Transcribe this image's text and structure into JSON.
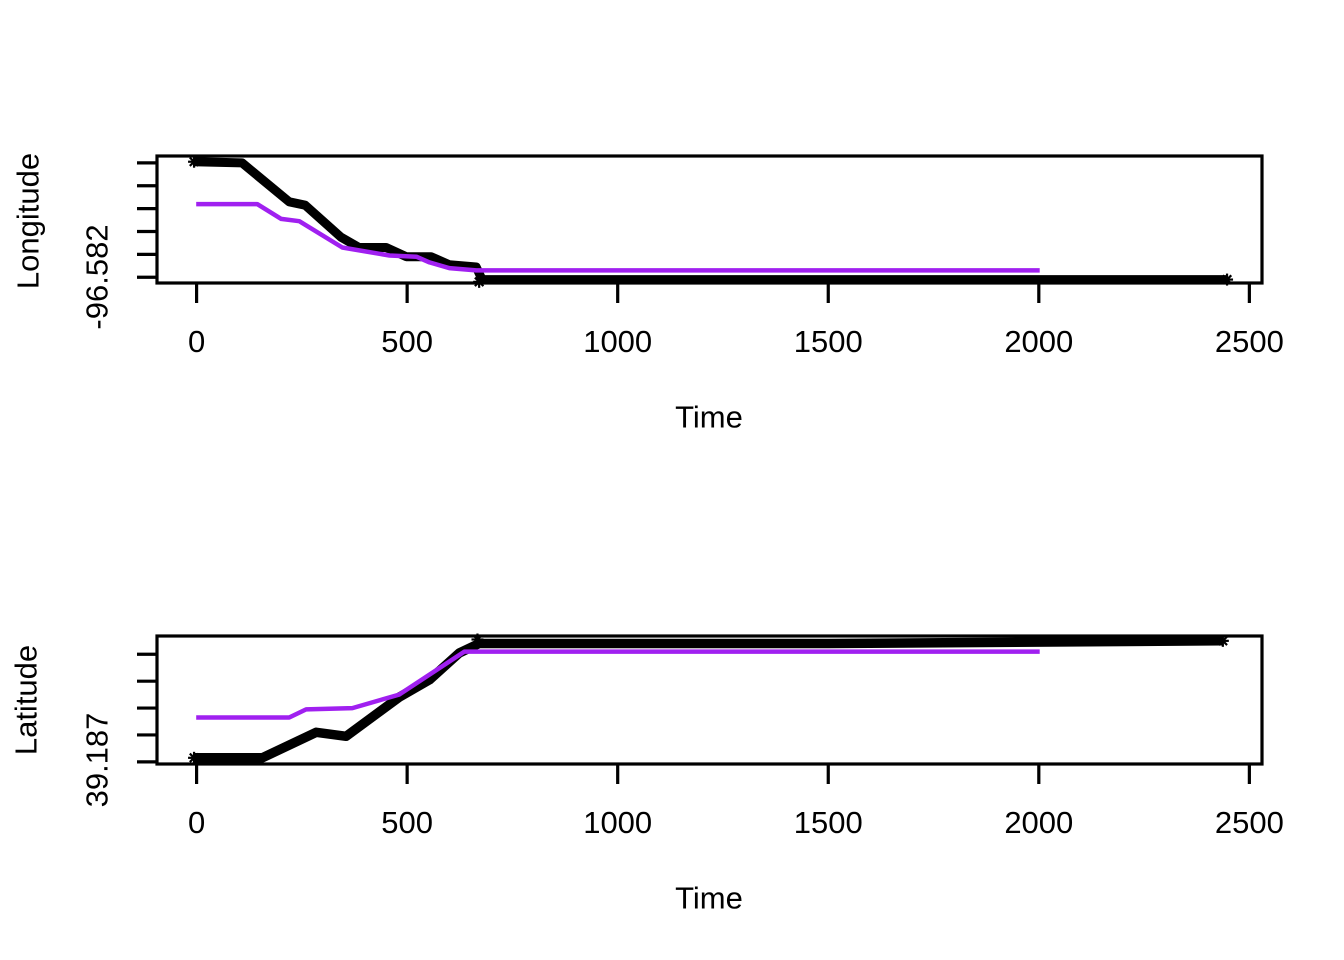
{
  "background_color": "#ffffff",
  "text_color": "#000000",
  "chart_data": [
    {
      "type": "line",
      "panel": "top",
      "title": "",
      "xlabel": "Time",
      "ylabel": "Longitude",
      "y_tick_label": "-96.582",
      "xlim": [
        -94,
        2530
      ],
      "ylim": [
        -96.5825,
        -96.5714
      ],
      "grid": false,
      "legend_position": "none",
      "x_ticks": [
        0,
        500,
        1000,
        1500,
        2000,
        2500
      ],
      "x_tick_labels": [
        "0",
        "500",
        "1000",
        "1500",
        "2000",
        "2500"
      ],
      "y_ticks": [
        -96.582,
        -96.58,
        -96.578,
        -96.576,
        -96.574,
        -96.572
      ],
      "y_tick_labels": [
        "-96.582",
        "",
        "",
        "",
        "",
        ""
      ],
      "series": [
        {
          "name": "black-track",
          "color": "#000000",
          "width": 9,
          "points": [
            [
              -6,
              -96.5719
            ],
            [
              108,
              -96.572
            ],
            [
              220,
              -96.5754
            ],
            [
              258,
              -96.5757
            ],
            [
              343,
              -96.5785
            ],
            [
              386,
              -96.5794
            ],
            [
              450,
              -96.5794
            ],
            [
              498,
              -96.5802
            ],
            [
              557,
              -96.5802
            ],
            [
              600,
              -96.5809
            ],
            [
              664,
              -96.5811
            ],
            [
              678,
              -96.5822
            ],
            [
              2447,
              -96.5822
            ]
          ],
          "markers": [
            [
              -6,
              -96.5719
            ],
            [
              671,
              -96.5824
            ],
            [
              2447,
              -96.5822
            ]
          ]
        },
        {
          "name": "purple-track",
          "color": "#A020F0",
          "width": 4.5,
          "points": [
            [
              -1,
              -96.5756
            ],
            [
              144,
              -96.5756
            ],
            [
              201,
              -96.5769
            ],
            [
              244,
              -96.5771
            ],
            [
              346,
              -96.5794
            ],
            [
              458,
              -96.5801
            ],
            [
              522,
              -96.5802
            ],
            [
              553,
              -96.5807
            ],
            [
              600,
              -96.5812
            ],
            [
              664,
              -96.5814
            ],
            [
              2002,
              -96.5814
            ]
          ],
          "markers": []
        }
      ]
    },
    {
      "type": "line",
      "panel": "bottom",
      "title": "",
      "xlabel": "Time",
      "ylabel": "Latitude",
      "y_tick_label": "39.187",
      "xlim": [
        -94,
        2530
      ],
      "ylim": [
        39.18684,
        39.19636
      ],
      "grid": false,
      "legend_position": "none",
      "x_ticks": [
        0,
        500,
        1000,
        1500,
        2000,
        2500
      ],
      "x_tick_labels": [
        "0",
        "500",
        "1000",
        "1500",
        "2000",
        "2500"
      ],
      "y_ticks": [
        39.187,
        39.189,
        39.191,
        39.193,
        39.195
      ],
      "y_tick_labels": [
        "39.187",
        "",
        "",
        "",
        ""
      ],
      "series": [
        {
          "name": "black-track",
          "color": "#000000",
          "width": 9.5,
          "points": [
            [
              -6,
              39.1873
            ],
            [
              156,
              39.1873
            ],
            [
              284,
              39.1892
            ],
            [
              355,
              39.1889
            ],
            [
              481,
              39.1918
            ],
            [
              553,
              39.1931
            ],
            [
              624,
              39.1951
            ],
            [
              671,
              39.1958
            ],
            [
              1500,
              39.1958
            ],
            [
              2437,
              39.196
            ]
          ],
          "markers": [
            [
              -6,
              39.1873
            ],
            [
              667,
              39.1961
            ],
            [
              2437,
              39.196
            ]
          ]
        },
        {
          "name": "purple-track",
          "color": "#A020F0",
          "width": 4.5,
          "points": [
            [
              -1,
              39.1903
            ],
            [
              220,
              39.1903
            ],
            [
              260,
              39.1909
            ],
            [
              370,
              39.191
            ],
            [
              481,
              39.192
            ],
            [
              636,
              39.1952
            ],
            [
              2002,
              39.1952
            ]
          ],
          "markers": []
        }
      ]
    }
  ]
}
